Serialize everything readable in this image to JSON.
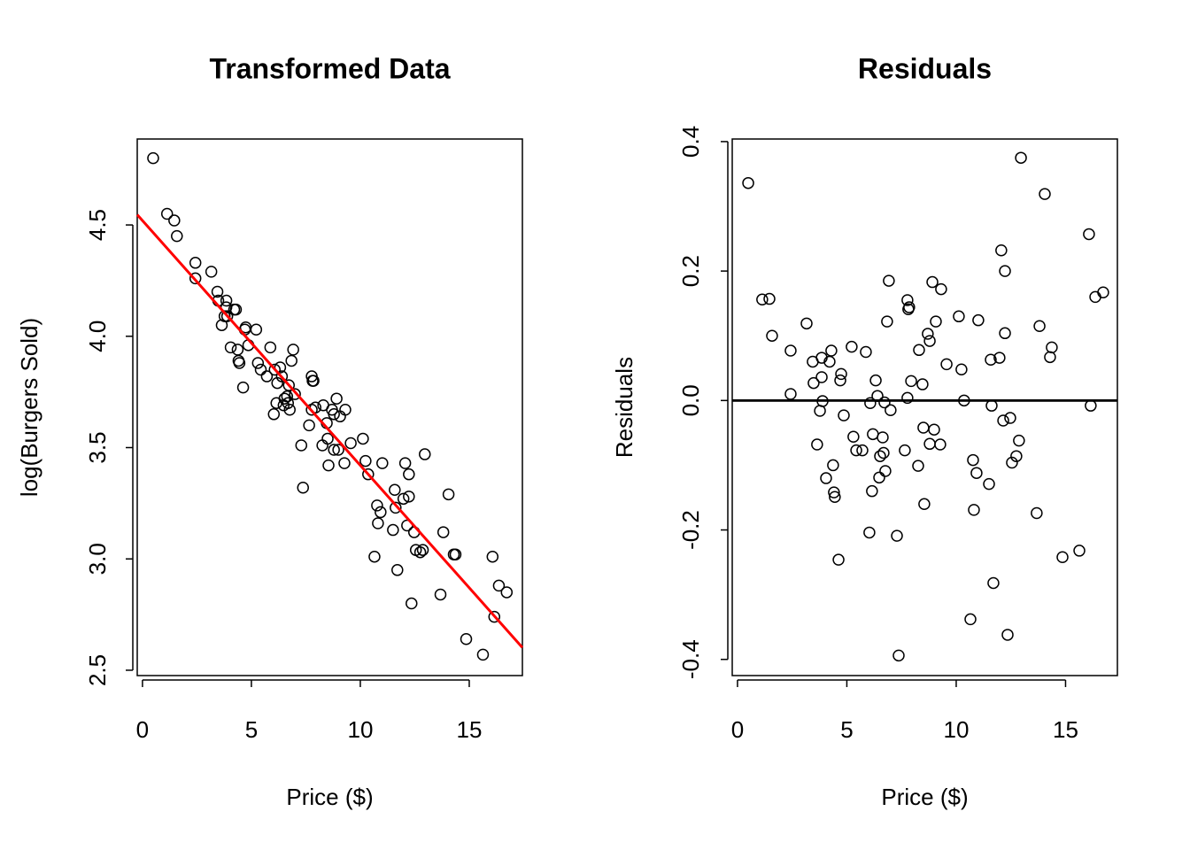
{
  "chart_data": [
    {
      "type": "scatter",
      "title": "Transformed Data",
      "x_label": "Price ($)",
      "y_label": "log(Burgers Sold)",
      "xlim": [
        -0.24,
        17.44
      ],
      "ylim": [
        2.476,
        4.886
      ],
      "xticks": [
        0,
        5,
        10,
        15
      ],
      "yticks": [
        2.5,
        {
          "value": 3,
          "label": "3.0"
        },
        3.5,
        {
          "value": 4,
          "label": "4.0"
        },
        4.5
      ],
      "color": "#000000",
      "x": [
        0.49,
        1.13,
        1.46,
        1.58,
        2.43,
        2.43,
        3.16,
        3.44,
        3.48,
        3.64,
        3.77,
        3.85,
        3.85,
        3.89,
        4.05,
        4.21,
        4.29,
        4.37,
        4.41,
        4.45,
        4.62,
        4.7,
        4.74,
        4.86,
        5.22,
        5.3,
        5.43,
        5.71,
        5.87,
        6.03,
        6.07,
        6.15,
        6.19,
        6.32,
        6.4,
        6.48,
        6.52,
        6.64,
        6.68,
        6.72,
        6.76,
        6.84,
        6.92,
        7.0,
        7.29,
        7.37,
        7.65,
        7.77,
        7.77,
        7.81,
        7.85,
        7.94,
        8.26,
        8.3,
        8.46,
        8.5,
        8.54,
        8.7,
        8.79,
        8.79,
        8.91,
        8.99,
        9.07,
        9.27,
        9.31,
        9.56,
        10.12,
        10.24,
        10.36,
        10.77,
        10.81,
        10.65,
        10.93,
        11.01,
        11.5,
        11.58,
        11.62,
        11.7,
        11.98,
        12.06,
        12.15,
        12.23,
        12.23,
        12.35,
        12.47,
        12.55,
        12.75,
        12.87,
        12.96,
        13.68,
        13.81,
        14.05,
        14.29,
        14.37,
        14.86,
        15.63,
        16.07,
        16.15,
        16.36,
        16.72
      ],
      "values": [
        4.8,
        4.55,
        4.52,
        4.45,
        4.33,
        4.26,
        4.29,
        4.2,
        4.16,
        4.05,
        4.09,
        4.16,
        4.13,
        4.09,
        3.95,
        4.12,
        4.12,
        3.94,
        3.89,
        3.88,
        3.77,
        4.03,
        4.04,
        3.96,
        4.03,
        3.88,
        3.85,
        3.82,
        3.95,
        3.65,
        3.85,
        3.7,
        3.79,
        3.86,
        3.82,
        3.69,
        3.72,
        3.73,
        3.7,
        3.78,
        3.67,
        3.89,
        3.94,
        3.74,
        3.51,
        3.32,
        3.6,
        3.67,
        3.82,
        3.8,
        3.8,
        3.68,
        3.51,
        3.69,
        3.61,
        3.54,
        3.42,
        3.67,
        3.65,
        3.49,
        3.72,
        3.49,
        3.64,
        3.43,
        3.67,
        3.52,
        3.54,
        3.44,
        3.38,
        3.24,
        3.16,
        3.01,
        3.21,
        3.43,
        3.13,
        3.31,
        3.23,
        2.95,
        3.27,
        3.43,
        3.15,
        3.38,
        3.28,
        2.8,
        3.12,
        3.04,
        3.03,
        3.04,
        3.47,
        2.84,
        3.12,
        3.29,
        3.02,
        3.02,
        2.64,
        2.57,
        3.01,
        2.74,
        2.88,
        2.85
      ],
      "lines": [
        {
          "color": "#ff0000",
          "x": [
            -0.24,
            17.44
          ],
          "values": [
            4.546,
            2.602
          ]
        }
      ]
    },
    {
      "type": "scatter",
      "title": "Residuals",
      "x_label": "Price ($)",
      "y_label": "Residuals",
      "xlim": [
        -0.24,
        17.37
      ],
      "ylim": [
        -0.425,
        0.404
      ],
      "xticks": [
        0,
        5,
        10,
        15
      ],
      "yticks": [
        -0.4,
        -0.2,
        {
          "value": 0,
          "label": "0.0"
        },
        0.2,
        0.4
      ],
      "color": "#000000",
      "x": [
        0.49,
        1.13,
        1.46,
        1.58,
        2.43,
        2.43,
        3.16,
        3.44,
        3.48,
        3.64,
        3.77,
        3.85,
        3.85,
        3.89,
        4.05,
        4.21,
        4.29,
        4.37,
        4.41,
        4.45,
        4.62,
        4.7,
        4.74,
        4.86,
        5.22,
        5.3,
        5.43,
        5.71,
        5.87,
        6.03,
        6.07,
        6.15,
        6.19,
        6.32,
        6.4,
        6.48,
        6.52,
        6.64,
        6.68,
        6.72,
        6.76,
        6.84,
        6.92,
        7.0,
        7.29,
        7.37,
        7.65,
        7.77,
        7.77,
        7.81,
        7.85,
        7.94,
        8.26,
        8.3,
        8.46,
        8.5,
        8.54,
        8.7,
        8.79,
        8.79,
        8.91,
        8.99,
        9.07,
        9.27,
        9.31,
        9.56,
        10.12,
        10.24,
        10.36,
        10.77,
        10.81,
        10.65,
        10.93,
        11.01,
        11.5,
        11.58,
        11.62,
        11.7,
        11.98,
        12.06,
        12.15,
        12.23,
        12.23,
        12.35,
        12.47,
        12.55,
        12.75,
        12.87,
        12.96,
        13.68,
        13.81,
        14.05,
        14.29,
        14.37,
        14.86,
        15.63,
        16.07,
        16.15,
        16.36,
        16.72
      ],
      "values": [
        0.336,
        0.156,
        0.157,
        0.1,
        0.077,
        0.01,
        0.119,
        0.06,
        0.027,
        -0.068,
        -0.016,
        0.066,
        0.036,
        -0.001,
        -0.12,
        0.06,
        0.077,
        -0.1,
        -0.142,
        -0.149,
        -0.246,
        0.031,
        0.041,
        -0.023,
        0.083,
        -0.056,
        -0.077,
        -0.077,
        0.075,
        -0.204,
        -0.004,
        -0.14,
        -0.052,
        0.031,
        0.007,
        -0.119,
        -0.086,
        -0.057,
        -0.081,
        -0.003,
        -0.109,
        0.122,
        0.185,
        -0.015,
        -0.209,
        -0.394,
        -0.077,
        0.004,
        0.155,
        0.141,
        0.144,
        0.03,
        -0.101,
        0.078,
        0.025,
        -0.042,
        -0.16,
        0.103,
        0.092,
        -0.067,
        0.183,
        -0.045,
        0.122,
        -0.068,
        0.172,
        0.056,
        0.13,
        0.048,
        0.0,
        -0.092,
        -0.169,
        -0.338,
        -0.112,
        0.124,
        -0.129,
        0.063,
        -0.008,
        -0.282,
        0.066,
        0.232,
        -0.031,
        0.2,
        0.104,
        -0.362,
        -0.027,
        -0.096,
        -0.086,
        -0.062,
        0.375,
        -0.174,
        0.115,
        0.319,
        0.067,
        0.082,
        -0.242,
        -0.232,
        0.257,
        -0.008,
        0.16,
        0.167
      ],
      "lines": [
        {
          "color": "#000000",
          "x": [
            -0.24,
            17.37
          ],
          "values": [
            0,
            0
          ]
        }
      ]
    }
  ]
}
